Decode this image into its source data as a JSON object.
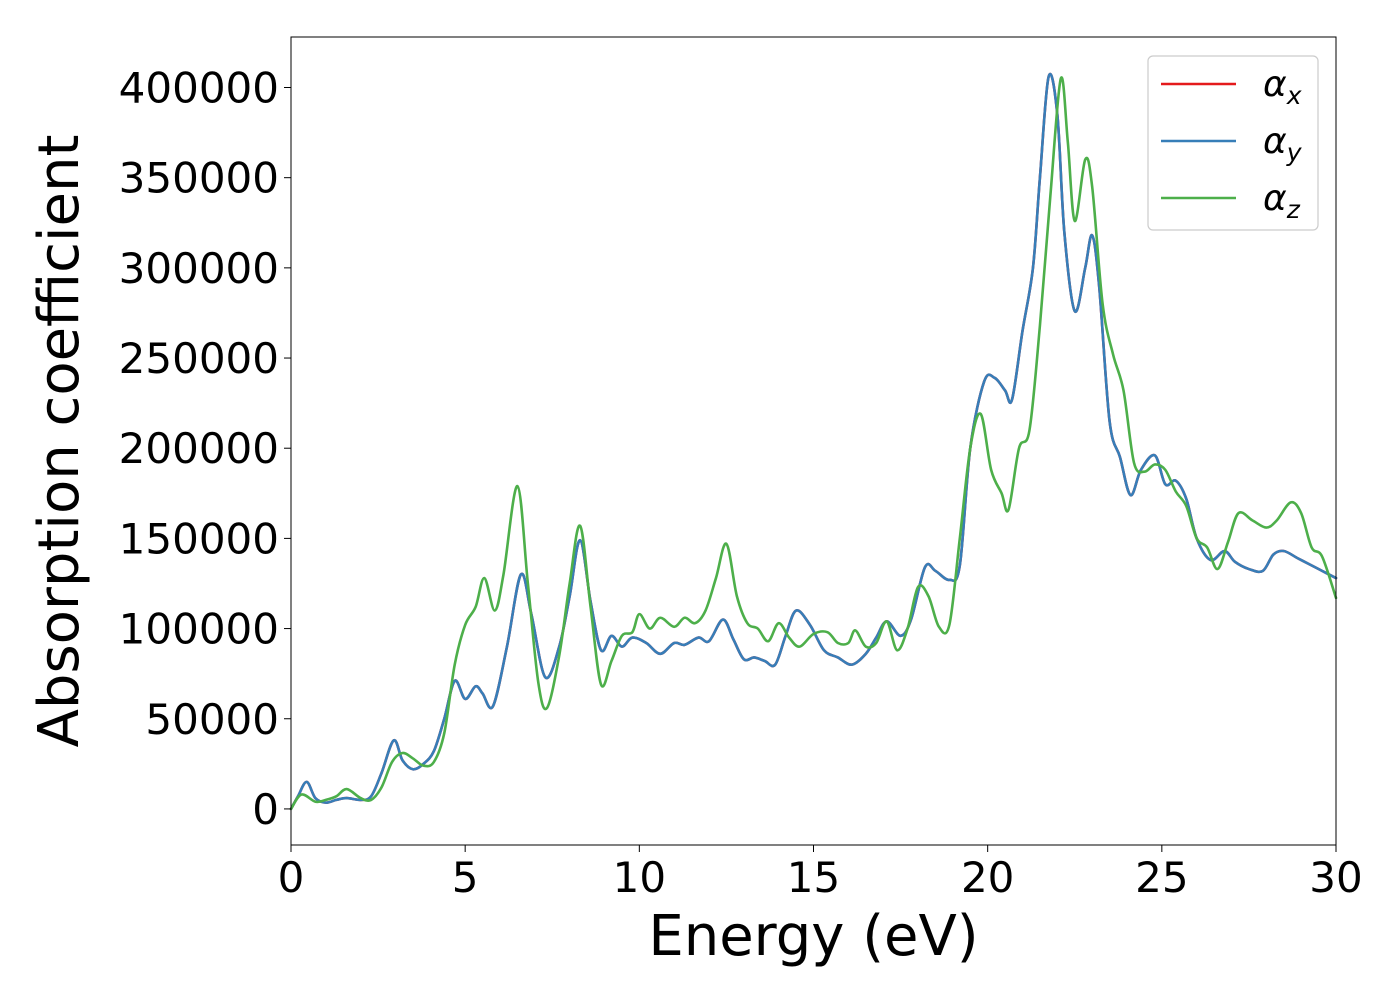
{
  "chart_data": {
    "type": "line",
    "xlabel": "Energy (eV)",
    "ylabel": "Absorption coefficient",
    "xlim": [
      0,
      30
    ],
    "ylim": [
      -20000,
      428000
    ],
    "xticks": [
      0,
      5,
      10,
      15,
      20,
      25,
      30
    ],
    "xtick_labels": [
      "0",
      "5",
      "10",
      "15",
      "20",
      "25",
      "30"
    ],
    "yticks": [
      0,
      50000,
      100000,
      150000,
      200000,
      250000,
      300000,
      350000,
      400000
    ],
    "ytick_labels": [
      "0",
      "50000",
      "100000",
      "150000",
      "200000",
      "250000",
      "300000",
      "350000",
      "400000"
    ],
    "grid": false,
    "legend_position": "top-right",
    "series": [
      {
        "name": "α",
        "subscript": "x",
        "color": "#e41a1c",
        "x": [
          0,
          0.2,
          0.45,
          0.7,
          1.0,
          1.3,
          1.6,
          2.0,
          2.3,
          2.6,
          2.95,
          3.2,
          3.5,
          3.8,
          4.1,
          4.4,
          4.7,
          5.0,
          5.3,
          5.5,
          5.8,
          6.2,
          6.6,
          6.9,
          7.3,
          7.7,
          8.0,
          8.3,
          8.6,
          8.9,
          9.2,
          9.5,
          9.8,
          10.2,
          10.6,
          11.0,
          11.3,
          11.7,
          12.0,
          12.4,
          12.7,
          13.0,
          13.3,
          13.6,
          13.9,
          14.2,
          14.5,
          14.9,
          15.3,
          15.7,
          16.1,
          16.5,
          16.8,
          17.1,
          17.5,
          17.8,
          18.2,
          18.5,
          18.9,
          19.2,
          19.5,
          19.9,
          20.2,
          20.5,
          20.7,
          21.0,
          21.3,
          21.5,
          21.75,
          22.0,
          22.2,
          22.5,
          22.8,
          23.0,
          23.2,
          23.5,
          23.8,
          24.1,
          24.4,
          24.8,
          25.1,
          25.4,
          25.7,
          26.0,
          26.4,
          26.8,
          27.1,
          27.5,
          27.9,
          28.2,
          28.5,
          28.9,
          29.2,
          29.6,
          30.0
        ],
        "y": [
          0,
          7000,
          15000,
          6000,
          3500,
          5000,
          6000,
          5000,
          7000,
          20000,
          38000,
          27000,
          22000,
          25000,
          32000,
          50000,
          71000,
          61000,
          68000,
          64000,
          57000,
          90000,
          130000,
          108000,
          73000,
          90000,
          118000,
          149000,
          115000,
          88000,
          96000,
          90000,
          95000,
          92000,
          86000,
          92000,
          91000,
          95000,
          93000,
          105000,
          94000,
          83000,
          84000,
          82000,
          80000,
          96000,
          110000,
          102000,
          88000,
          84000,
          80000,
          86000,
          95000,
          104000,
          96000,
          105000,
          134000,
          132000,
          127000,
          135000,
          200000,
          237000,
          239000,
          232000,
          227000,
          265000,
          300000,
          350000,
          406000,
          385000,
          320000,
          276000,
          300000,
          318000,
          290000,
          215000,
          195000,
          174000,
          188000,
          196000,
          180000,
          182000,
          172000,
          150000,
          138000,
          143000,
          137000,
          133000,
          132000,
          141000,
          143000,
          139000,
          136000,
          132000,
          128000
        ]
      },
      {
        "name": "α",
        "subscript": "y",
        "color": "#377eb8",
        "x": [
          0,
          0.2,
          0.45,
          0.7,
          1.0,
          1.3,
          1.6,
          2.0,
          2.3,
          2.6,
          2.95,
          3.2,
          3.5,
          3.8,
          4.1,
          4.4,
          4.7,
          5.0,
          5.3,
          5.5,
          5.8,
          6.2,
          6.6,
          6.9,
          7.3,
          7.7,
          8.0,
          8.3,
          8.6,
          8.9,
          9.2,
          9.5,
          9.8,
          10.2,
          10.6,
          11.0,
          11.3,
          11.7,
          12.0,
          12.4,
          12.7,
          13.0,
          13.3,
          13.6,
          13.9,
          14.2,
          14.5,
          14.9,
          15.3,
          15.7,
          16.1,
          16.5,
          16.8,
          17.1,
          17.5,
          17.8,
          18.2,
          18.5,
          18.9,
          19.2,
          19.5,
          19.9,
          20.2,
          20.5,
          20.7,
          21.0,
          21.3,
          21.5,
          21.75,
          22.0,
          22.2,
          22.5,
          22.8,
          23.0,
          23.2,
          23.5,
          23.8,
          24.1,
          24.4,
          24.8,
          25.1,
          25.4,
          25.7,
          26.0,
          26.4,
          26.8,
          27.1,
          27.5,
          27.9,
          28.2,
          28.5,
          28.9,
          29.2,
          29.6,
          30.0
        ],
        "y": [
          0,
          7000,
          15000,
          6000,
          3500,
          5000,
          6000,
          5000,
          7000,
          20000,
          38000,
          27000,
          22000,
          25000,
          32000,
          50000,
          71000,
          61000,
          68000,
          64000,
          57000,
          90000,
          130000,
          108000,
          73000,
          90000,
          118000,
          149000,
          115000,
          88000,
          96000,
          90000,
          95000,
          92000,
          86000,
          92000,
          91000,
          95000,
          93000,
          105000,
          94000,
          83000,
          84000,
          82000,
          80000,
          96000,
          110000,
          102000,
          88000,
          84000,
          80000,
          86000,
          95000,
          104000,
          96000,
          105000,
          134000,
          132000,
          127000,
          135000,
          200000,
          237000,
          239000,
          232000,
          227000,
          265000,
          300000,
          350000,
          406000,
          385000,
          320000,
          276000,
          300000,
          318000,
          290000,
          215000,
          195000,
          174000,
          188000,
          196000,
          180000,
          182000,
          172000,
          150000,
          138000,
          143000,
          137000,
          133000,
          132000,
          141000,
          143000,
          139000,
          136000,
          132000,
          128000
        ]
      },
      {
        "name": "α",
        "subscript": "z",
        "color": "#4daf4a",
        "x": [
          0,
          0.3,
          0.7,
          1.0,
          1.3,
          1.6,
          2.0,
          2.3,
          2.6,
          2.9,
          3.2,
          3.5,
          3.8,
          4.1,
          4.4,
          4.7,
          5.0,
          5.3,
          5.55,
          5.85,
          6.1,
          6.5,
          6.8,
          7.1,
          7.35,
          7.7,
          8.0,
          8.3,
          8.6,
          8.9,
          9.2,
          9.5,
          9.8,
          10.0,
          10.3,
          10.6,
          11.0,
          11.3,
          11.6,
          11.9,
          12.2,
          12.5,
          12.8,
          13.1,
          13.4,
          13.7,
          14.0,
          14.3,
          14.6,
          15.0,
          15.4,
          15.7,
          16.0,
          16.2,
          16.5,
          16.8,
          17.1,
          17.4,
          17.7,
          18.0,
          18.3,
          18.6,
          18.9,
          19.2,
          19.5,
          19.8,
          20.1,
          20.4,
          20.6,
          20.9,
          21.2,
          21.5,
          21.8,
          22.1,
          22.3,
          22.5,
          22.8,
          23.0,
          23.3,
          23.6,
          23.9,
          24.2,
          24.5,
          24.8,
          25.1,
          25.4,
          25.7,
          26.0,
          26.3,
          26.6,
          26.9,
          27.2,
          27.6,
          28.0,
          28.3,
          28.7,
          29.0,
          29.3,
          29.6,
          30.0
        ],
        "y": [
          0,
          8000,
          4000,
          5000,
          7000,
          11000,
          6000,
          5000,
          12000,
          26000,
          31000,
          28000,
          24000,
          26000,
          42000,
          80000,
          102000,
          112000,
          128000,
          110000,
          130000,
          179000,
          125000,
          70000,
          56000,
          85000,
          125000,
          157000,
          112000,
          69000,
          82000,
          96000,
          98000,
          108000,
          100000,
          106000,
          101000,
          106000,
          103000,
          110000,
          128000,
          147000,
          118000,
          103000,
          100000,
          93000,
          103000,
          95000,
          90000,
          97000,
          98000,
          92000,
          92000,
          99000,
          90000,
          92000,
          104000,
          88000,
          100000,
          123000,
          118000,
          101000,
          102000,
          150000,
          200000,
          219000,
          188000,
          175000,
          166000,
          200000,
          210000,
          268000,
          340000,
          405000,
          370000,
          326000,
          360000,
          345000,
          280000,
          252000,
          232000,
          192000,
          187000,
          191000,
          188000,
          176000,
          168000,
          150000,
          145000,
          133000,
          148000,
          164000,
          160000,
          156000,
          160000,
          170000,
          164000,
          145000,
          140000,
          117000
        ]
      }
    ]
  }
}
